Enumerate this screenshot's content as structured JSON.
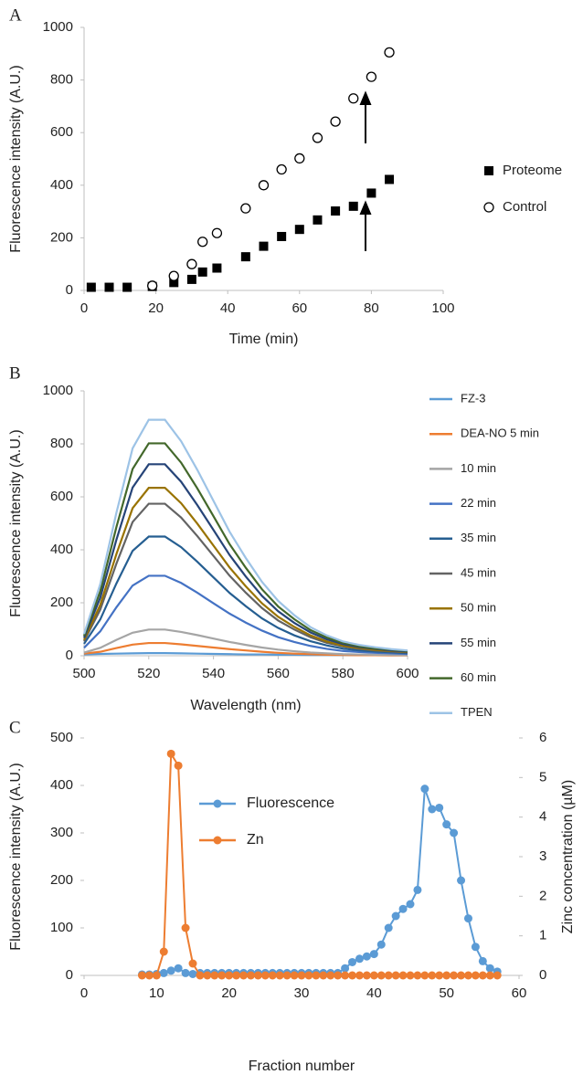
{
  "chart_data": [
    {
      "type": "scatter",
      "panel_label": "A",
      "xlabel": "Time (min)",
      "ylabel": "Fluorescence intensity (A.U.)",
      "xlim": [
        0,
        100
      ],
      "xticks": [
        0,
        20,
        40,
        60,
        80,
        100
      ],
      "ylim": [
        0,
        1000
      ],
      "yticks": [
        0,
        200,
        400,
        600,
        800,
        1000
      ],
      "series": [
        {
          "name": "Proteome",
          "marker": "square",
          "color": "#000000",
          "x": [
            2,
            7,
            12,
            19,
            25,
            30,
            33,
            37,
            45,
            50,
            55,
            60,
            65,
            70,
            75,
            80,
            85
          ],
          "values": [
            12,
            12,
            12,
            15,
            30,
            42,
            70,
            85,
            128,
            168,
            205,
            232,
            268,
            302,
            320,
            370,
            422
          ]
        },
        {
          "name": "Control",
          "marker": "circle",
          "color": "#000000",
          "x": [
            19,
            25,
            30,
            33,
            37,
            45,
            50,
            55,
            60,
            65,
            70,
            75,
            80,
            85
          ],
          "values": [
            18,
            55,
            100,
            185,
            218,
            312,
            400,
            460,
            502,
            580,
            642,
            730,
            812,
            905
          ]
        }
      ]
    },
    {
      "type": "line",
      "panel_label": "B",
      "xlabel": "Wavelength (nm)",
      "ylabel": "Fluorescence intensity (A.U.)",
      "xlim": [
        500,
        600
      ],
      "xticks": [
        500,
        520,
        540,
        560,
        580,
        600
      ],
      "ylim": [
        0,
        1000
      ],
      "yticks": [
        0,
        200,
        400,
        600,
        800,
        1000
      ],
      "x": [
        500,
        505,
        510,
        515,
        520,
        525,
        530,
        535,
        540,
        545,
        550,
        555,
        560,
        565,
        570,
        575,
        580,
        585,
        590,
        595,
        600
      ],
      "series": [
        {
          "name": "FZ-3",
          "color": "#5b9bd5",
          "values": [
            5,
            7,
            8,
            9,
            10,
            10,
            9,
            8,
            7,
            6,
            5,
            5,
            4,
            4,
            3,
            3,
            3,
            3,
            2,
            2,
            2
          ]
        },
        {
          "name": "DEA-NO 5 min",
          "color": "#ed7d31",
          "values": [
            8,
            15,
            29,
            42,
            48,
            48,
            43,
            37,
            31,
            25,
            20,
            15,
            11,
            8,
            6,
            4,
            3,
            2,
            2,
            1,
            1
          ]
        },
        {
          "name": "10 min",
          "color": "#a5a5a5",
          "values": [
            12,
            30,
            60,
            87,
            99,
            99,
            90,
            78,
            65,
            52,
            41,
            31,
            23,
            17,
            12,
            9,
            6,
            5,
            4,
            3,
            2
          ]
        },
        {
          "name": "22 min",
          "color": "#4472c4",
          "values": [
            30,
            92,
            183,
            265,
            302,
            302,
            275,
            238,
            198,
            159,
            125,
            95,
            70,
            52,
            37,
            26,
            18,
            14,
            11,
            9,
            7
          ]
        },
        {
          "name": "35 min",
          "color": "#255e91",
          "values": [
            45,
            137,
            273,
            396,
            450,
            450,
            410,
            355,
            296,
            237,
            187,
            141,
            105,
            77,
            55,
            39,
            27,
            20,
            16,
            13,
            10
          ]
        },
        {
          "name": "45 min",
          "color": "#636363",
          "values": [
            55,
            174,
            348,
            505,
            574,
            574,
            522,
            452,
            377,
            302,
            238,
            180,
            133,
            99,
            70,
            49,
            35,
            26,
            20,
            16,
            13
          ]
        },
        {
          "name": "50 min",
          "color": "#997300",
          "values": [
            60,
            192,
            384,
            557,
            634,
            634,
            576,
            499,
            416,
            333,
            262,
            198,
            147,
            109,
            77,
            54,
            38,
            29,
            22,
            18,
            14
          ]
        },
        {
          "name": "55 min",
          "color": "#264478",
          "values": [
            68,
            219,
            438,
            635,
            723,
            723,
            657,
            569,
            475,
            380,
            299,
            226,
            168,
            124,
            88,
            62,
            44,
            33,
            26,
            20,
            16
          ]
        },
        {
          "name": "60 min",
          "color": "#43682b",
          "values": [
            75,
            243,
            486,
            705,
            802,
            802,
            729,
            632,
            527,
            421,
            332,
            251,
            186,
            138,
            97,
            69,
            49,
            36,
            28,
            23,
            18
          ]
        },
        {
          "name": "TPEN",
          "color": "#9dc3e6",
          "values": [
            82,
            270,
            540,
            783,
            891,
            891,
            810,
            702,
            585,
            468,
            369,
            279,
            207,
            153,
            108,
            77,
            54,
            41,
            32,
            25,
            20
          ]
        }
      ]
    },
    {
      "type": "line",
      "panel_label": "C",
      "markers": true,
      "xlabel": "Fraction number",
      "ylabel": "Fluorescence intensity (A.U.)",
      "y2label": "Zinc concentration (µM)",
      "xlim": [
        0,
        60
      ],
      "xticks": [
        0,
        10,
        20,
        30,
        40,
        50,
        60
      ],
      "ylim": [
        0,
        500
      ],
      "yticks": [
        0,
        100,
        200,
        300,
        400,
        500
      ],
      "y2lim": [
        0,
        6
      ],
      "y2ticks": [
        0,
        1,
        2,
        3,
        4,
        5,
        6
      ],
      "x": [
        8,
        9,
        10,
        11,
        12,
        13,
        14,
        15,
        16,
        17,
        18,
        19,
        20,
        21,
        22,
        23,
        24,
        25,
        26,
        27,
        28,
        29,
        30,
        31,
        32,
        33,
        34,
        35,
        36,
        37,
        38,
        39,
        40,
        41,
        42,
        43,
        44,
        45,
        46,
        47,
        48,
        49,
        50,
        51,
        52,
        53,
        54,
        55,
        56,
        57
      ],
      "series": [
        {
          "name": "Fluorescence",
          "color": "#5b9bd5",
          "values": [
            2,
            2,
            3,
            5,
            10,
            15,
            5,
            3,
            5,
            5,
            5,
            5,
            5,
            5,
            5,
            5,
            5,
            5,
            5,
            5,
            5,
            5,
            5,
            5,
            5,
            5,
            5,
            5,
            15,
            28,
            35,
            40,
            45,
            65,
            100,
            125,
            140,
            150,
            180,
            393,
            350,
            353,
            318,
            300,
            200,
            120,
            60,
            30,
            15,
            8
          ]
        },
        {
          "name": "Zn",
          "color": "#ed7d31",
          "axis": "y2",
          "values": [
            0,
            0,
            0,
            0.6,
            5.6,
            5.3,
            1.2,
            0.3,
            0,
            0,
            0,
            0,
            0,
            0,
            0,
            0,
            0,
            0,
            0,
            0,
            0,
            0,
            0,
            0,
            0,
            0,
            0,
            0,
            0,
            0,
            0,
            0,
            0,
            0,
            0,
            0,
            0,
            0,
            0,
            0,
            0,
            0,
            0,
            0,
            0,
            0,
            0,
            0,
            0,
            0
          ]
        }
      ]
    }
  ]
}
